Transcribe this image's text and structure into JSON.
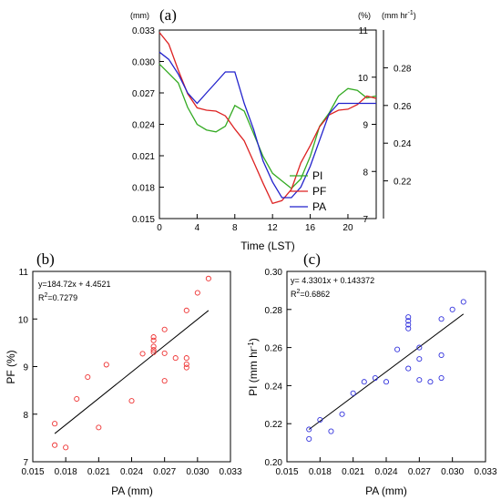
{
  "chart_data": [
    {
      "panel": "(a)",
      "type": "line",
      "xlabel": "Time (LST)",
      "x_ticks": [
        0,
        4,
        8,
        12,
        16,
        20
      ],
      "xlim": [
        0,
        23
      ],
      "left_axis": {
        "unit": "(mm)",
        "ylim": [
          0.015,
          0.033
        ],
        "ticks": [
          "0.015",
          "0.018",
          "0.021",
          "0.024",
          "0.027",
          "0.030",
          "0.033"
        ]
      },
      "mid_axis": {
        "unit": "(%)",
        "ylim": [
          7,
          11
        ],
        "ticks": [
          "7",
          "8",
          "9",
          "10",
          "11"
        ]
      },
      "right_axis": {
        "unit": "(mm hr",
        "unit_sup": "-1",
        "unit_end": ")",
        "ylim": [
          0.2,
          0.3
        ],
        "ticks": [
          "0.22",
          "0.24",
          "0.26",
          "0.28"
        ]
      },
      "x": [
        0,
        1,
        2,
        3,
        4,
        5,
        6,
        7,
        8,
        9,
        10,
        11,
        12,
        13,
        14,
        15,
        16,
        17,
        18,
        19,
        20,
        21,
        22,
        23
      ],
      "series": [
        {
          "name": "PI",
          "color": "#33aa22",
          "axis": "right_axis",
          "values": [
            0.282,
            0.277,
            0.272,
            0.259,
            0.25,
            0.247,
            0.246,
            0.249,
            0.26,
            0.257,
            0.245,
            0.233,
            0.224,
            0.22,
            0.216,
            0.221,
            0.233,
            0.249,
            0.256,
            0.265,
            0.269,
            0.268,
            0.264,
            0.265
          ]
        },
        {
          "name": "PF",
          "color": "#dd2222",
          "axis": "mid_axis",
          "values": [
            10.95,
            10.7,
            10.15,
            9.65,
            9.35,
            9.3,
            9.28,
            9.18,
            8.9,
            8.65,
            8.2,
            7.75,
            7.32,
            7.38,
            7.62,
            8.18,
            8.55,
            8.95,
            9.2,
            9.3,
            9.32,
            9.42,
            9.6,
            9.55
          ]
        },
        {
          "name": "PA",
          "color": "#2222cc",
          "axis": "left_axis",
          "values": [
            0.0309,
            0.0302,
            0.0288,
            0.027,
            0.026,
            0.027,
            0.028,
            0.029,
            0.029,
            0.026,
            0.0235,
            0.0205,
            0.0185,
            0.017,
            0.017,
            0.018,
            0.02,
            0.0225,
            0.025,
            0.026,
            0.026,
            0.026,
            0.026,
            0.026
          ]
        }
      ]
    },
    {
      "panel": "(b)",
      "type": "scatter",
      "xlabel": "PA (mm)",
      "ylabel": "PF (%)",
      "xlim": [
        0.015,
        0.033
      ],
      "ylim": [
        7,
        11
      ],
      "x_ticks": [
        "0.015",
        "0.018",
        "0.021",
        "0.024",
        "0.027",
        "0.030",
        "0.033"
      ],
      "y_ticks": [
        "7",
        "8",
        "9",
        "10",
        "11"
      ],
      "equation": "y=184.72x + 4.4521",
      "r2_prefix": "R",
      "r2_sup": "2",
      "r2_value": "=0.7279",
      "fit": {
        "slope": 184.72,
        "intercept": 4.4521,
        "x_range": [
          0.017,
          0.031
        ]
      },
      "marker_color": "#ee3333",
      "points": [
        [
          0.017,
          7.35
        ],
        [
          0.017,
          7.8
        ],
        [
          0.018,
          7.3
        ],
        [
          0.019,
          8.32
        ],
        [
          0.02,
          8.78
        ],
        [
          0.021,
          7.72
        ],
        [
          0.0217,
          9.04
        ],
        [
          0.024,
          8.28
        ],
        [
          0.025,
          9.27
        ],
        [
          0.026,
          9.3
        ],
        [
          0.026,
          9.35
        ],
        [
          0.026,
          9.42
        ],
        [
          0.026,
          9.55
        ],
        [
          0.026,
          9.62
        ],
        [
          0.027,
          9.28
        ],
        [
          0.027,
          9.78
        ],
        [
          0.027,
          8.7
        ],
        [
          0.028,
          9.18
        ],
        [
          0.029,
          9.18
        ],
        [
          0.029,
          10.18
        ],
        [
          0.029,
          8.98
        ],
        [
          0.029,
          9.05
        ],
        [
          0.03,
          10.55
        ],
        [
          0.031,
          10.85
        ]
      ]
    },
    {
      "panel": "(c)",
      "type": "scatter",
      "xlabel": "PA (mm)",
      "ylabel": "PI (mm hr",
      "ylabel_sup": "-1",
      "ylabel_end": ")",
      "xlim": [
        0.015,
        0.033
      ],
      "ylim": [
        0.2,
        0.3
      ],
      "x_ticks": [
        "0.015",
        "0.018",
        "0.021",
        "0.024",
        "0.027",
        "0.030",
        "0.033"
      ],
      "y_ticks": [
        "0.20",
        "0.22",
        "0.24",
        "0.26",
        "0.28",
        "0.30"
      ],
      "equation": "y= 4.3301x + 0.143372",
      "r2_prefix": "R",
      "r2_sup": "2",
      "r2_value": "=0.6862",
      "fit": {
        "slope": 4.3301,
        "intercept": 0.143372,
        "x_range": [
          0.017,
          0.031
        ]
      },
      "marker_color": "#3333dd",
      "points": [
        [
          0.017,
          0.212
        ],
        [
          0.017,
          0.217
        ],
        [
          0.018,
          0.222
        ],
        [
          0.019,
          0.216
        ],
        [
          0.02,
          0.225
        ],
        [
          0.021,
          0.236
        ],
        [
          0.022,
          0.242
        ],
        [
          0.023,
          0.244
        ],
        [
          0.024,
          0.242
        ],
        [
          0.025,
          0.259
        ],
        [
          0.026,
          0.249
        ],
        [
          0.026,
          0.27
        ],
        [
          0.026,
          0.272
        ],
        [
          0.026,
          0.274
        ],
        [
          0.026,
          0.276
        ],
        [
          0.027,
          0.243
        ],
        [
          0.027,
          0.254
        ],
        [
          0.027,
          0.26
        ],
        [
          0.028,
          0.242
        ],
        [
          0.029,
          0.244
        ],
        [
          0.029,
          0.256
        ],
        [
          0.029,
          0.275
        ],
        [
          0.03,
          0.28
        ],
        [
          0.031,
          0.284
        ]
      ]
    }
  ]
}
